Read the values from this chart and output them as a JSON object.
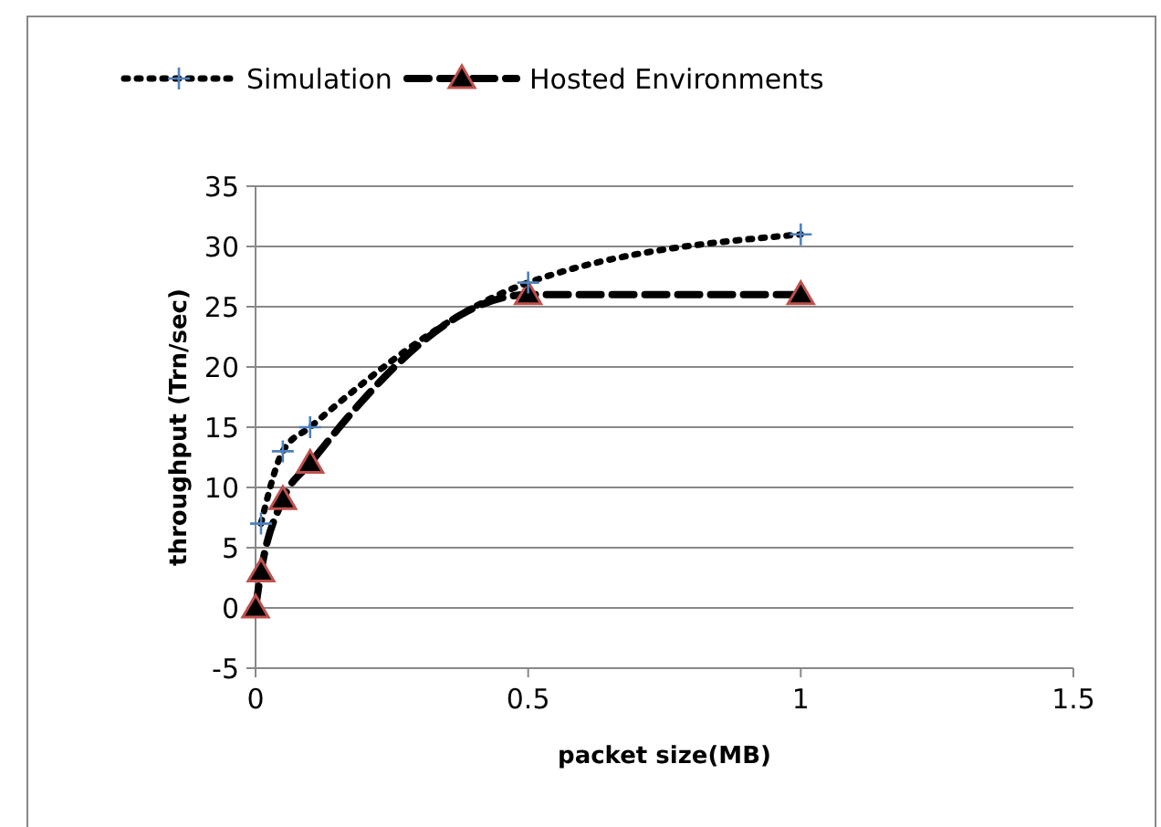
{
  "chart_data": {
    "type": "line",
    "xlabel": "packet size(MB)",
    "ylabel": "throughput (Trn/sec)",
    "xlim": [
      0,
      1.5
    ],
    "xticks": [
      0,
      0.5,
      1,
      1.5
    ],
    "ylim": [
      -5,
      35
    ],
    "yticks": [
      -5,
      0,
      5,
      10,
      15,
      20,
      25,
      30,
      35
    ],
    "grid": "y",
    "legend": "top",
    "series": [
      {
        "name": "Simulation",
        "color": "#000000",
        "marker": "cross",
        "colors": [
          "#4f81bd",
          "#4f81bd",
          "#4f81bd",
          "#4f81bd",
          "#4f81bd"
        ],
        "line_style": "dotted",
        "x": [
          0.01,
          0.05,
          0.1,
          0.5,
          1
        ],
        "values": [
          7,
          13,
          15,
          27,
          31
        ]
      },
      {
        "name": "Hosted Environments",
        "color": "#000000",
        "marker": "triangle",
        "colors": [
          "#c0504d",
          "#c0504d",
          "#c0504d",
          "#c0504d",
          "#c0504d",
          "#c0504d"
        ],
        "line_style": "dashed",
        "x": [
          0,
          0.01,
          0.05,
          0.1,
          0.5,
          1
        ],
        "values": [
          0,
          3,
          9,
          12,
          26,
          26
        ]
      }
    ]
  }
}
